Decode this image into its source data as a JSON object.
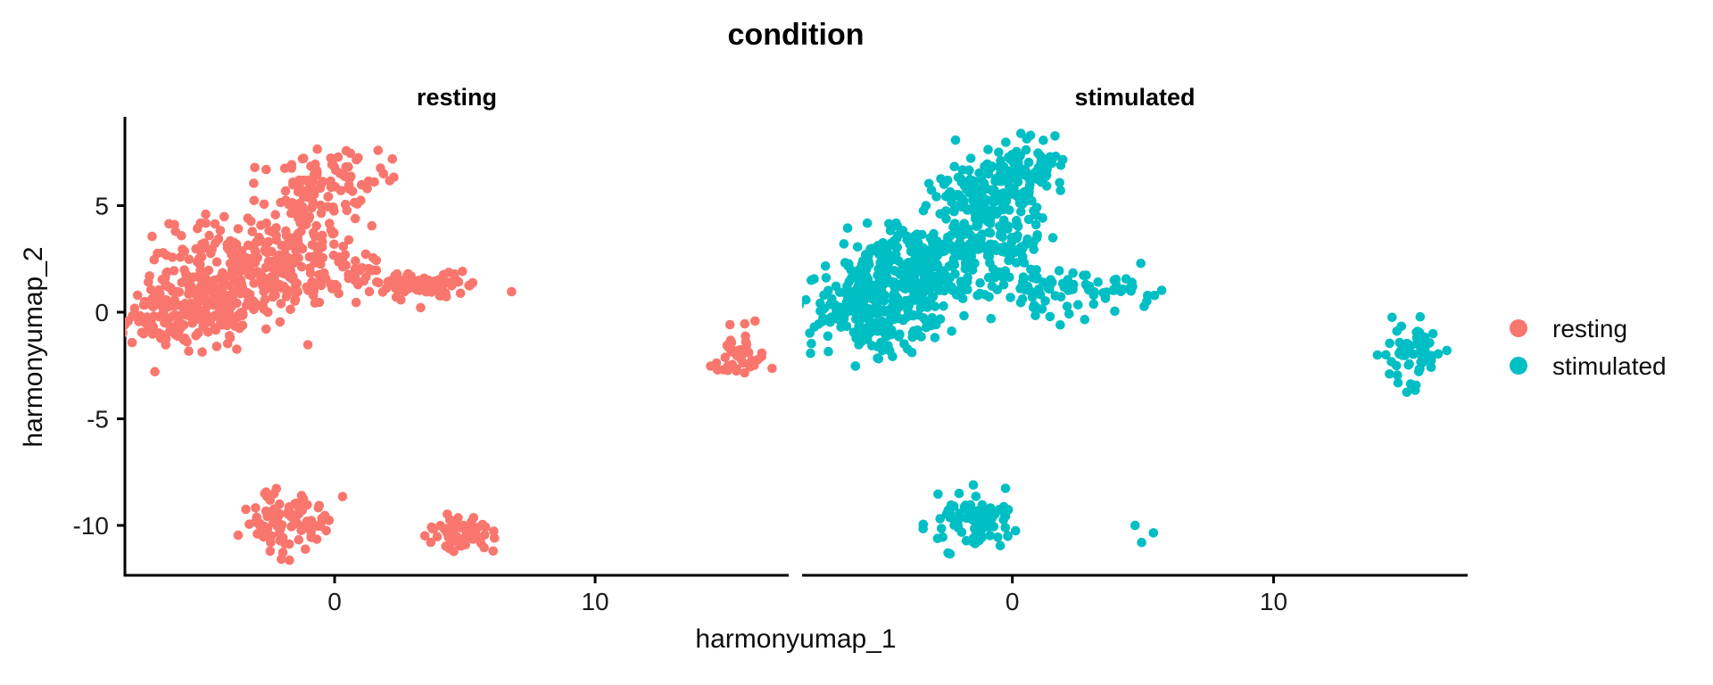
{
  "chart_data": {
    "type": "scatter",
    "title": "condition",
    "xlabel": "harmonyumap_1",
    "ylabel": "harmonyumap_2",
    "x_ticks": [
      0,
      10
    ],
    "y_ticks": [
      5,
      0,
      -5,
      -10
    ],
    "xlim": [
      -8.05,
      17.43
    ],
    "ylim": [
      -12.34,
      9.08
    ],
    "grid": false,
    "legend_position": "right",
    "point_radius_px": 5.3,
    "colors": {
      "resting": "#F8766D",
      "stimulated": "#00BFC4",
      "axis": "#000000"
    },
    "legend": [
      {
        "label": "resting",
        "color": "#F8766D"
      },
      {
        "label": "stimulated",
        "color": "#00BFC4"
      }
    ],
    "facets": [
      {
        "label": "resting",
        "color": "#F8766D",
        "clusters": [
          {
            "cx": -6.2,
            "cy": 0.0,
            "sx": 1.05,
            "sy": 0.85,
            "n": 120
          },
          {
            "cx": -4.3,
            "cy": 0.7,
            "sx": 1.25,
            "sy": 0.95,
            "n": 120
          },
          {
            "cx": -5.0,
            "cy": 2.6,
            "sx": 1.3,
            "sy": 1.0,
            "n": 75
          },
          {
            "cx": -2.7,
            "cy": 1.7,
            "sx": 1.15,
            "sy": 1.0,
            "n": 95
          },
          {
            "cx": -1.4,
            "cy": 3.2,
            "sx": 1.0,
            "sy": 1.0,
            "n": 60
          },
          {
            "cx": -0.7,
            "cy": 5.0,
            "sx": 0.95,
            "sy": 0.9,
            "n": 50
          },
          {
            "cx": -0.3,
            "cy": 6.5,
            "sx": 1.15,
            "sy": 0.75,
            "n": 60
          },
          {
            "cx": 0.4,
            "cy": 2.0,
            "sx": 0.75,
            "sy": 0.7,
            "n": 40
          },
          {
            "cx": 3.4,
            "cy": 1.25,
            "sx": 1.0,
            "sy": 0.33,
            "n": 90
          },
          {
            "cx": 15.5,
            "cy": -1.9,
            "sx": 0.55,
            "sy": 0.7,
            "n": 42
          },
          {
            "cx": -1.8,
            "cy": -9.8,
            "sx": 0.8,
            "sy": 0.75,
            "n": 90
          },
          {
            "cx": 4.9,
            "cy": -10.4,
            "sx": 0.6,
            "sy": 0.42,
            "n": 60
          }
        ],
        "points": []
      },
      {
        "label": "stimulated",
        "color": "#00BFC4",
        "clusters": [
          {
            "cx": -5.6,
            "cy": 0.0,
            "sx": 1.1,
            "sy": 0.95,
            "n": 170
          },
          {
            "cx": -4.0,
            "cy": 1.0,
            "sx": 1.3,
            "sy": 1.1,
            "n": 170
          },
          {
            "cx": -2.5,
            "cy": 2.3,
            "sx": 1.2,
            "sy": 1.1,
            "n": 120
          },
          {
            "cx": -4.6,
            "cy": 2.6,
            "sx": 1.1,
            "sy": 0.8,
            "n": 60
          },
          {
            "cx": -1.3,
            "cy": 4.3,
            "sx": 0.9,
            "sy": 0.9,
            "n": 80
          },
          {
            "cx": -0.6,
            "cy": 6.0,
            "sx": 1.1,
            "sy": 0.8,
            "n": 110
          },
          {
            "cx": 0.4,
            "cy": 6.9,
            "sx": 0.8,
            "sy": 0.55,
            "n": 50
          },
          {
            "cx": 0.3,
            "cy": 3.2,
            "sx": 0.7,
            "sy": 0.9,
            "n": 45
          },
          {
            "cx": 0.4,
            "cy": 1.3,
            "sx": 0.8,
            "sy": 0.6,
            "n": 25
          },
          {
            "cx": 1.8,
            "cy": 0.6,
            "sx": 0.8,
            "sy": 0.45,
            "n": 14
          },
          {
            "cx": 3.6,
            "cy": 1.1,
            "sx": 0.95,
            "sy": 0.33,
            "n": 45
          },
          {
            "cx": 15.4,
            "cy": -1.9,
            "sx": 0.6,
            "sy": 0.75,
            "n": 65
          },
          {
            "cx": -1.4,
            "cy": -9.8,
            "sx": 0.8,
            "sy": 0.7,
            "n": 85
          }
        ],
        "points": [
          [
            4.7,
            -10.0
          ],
          [
            5.4,
            -10.35
          ],
          [
            4.95,
            -10.8
          ]
        ]
      }
    ]
  }
}
